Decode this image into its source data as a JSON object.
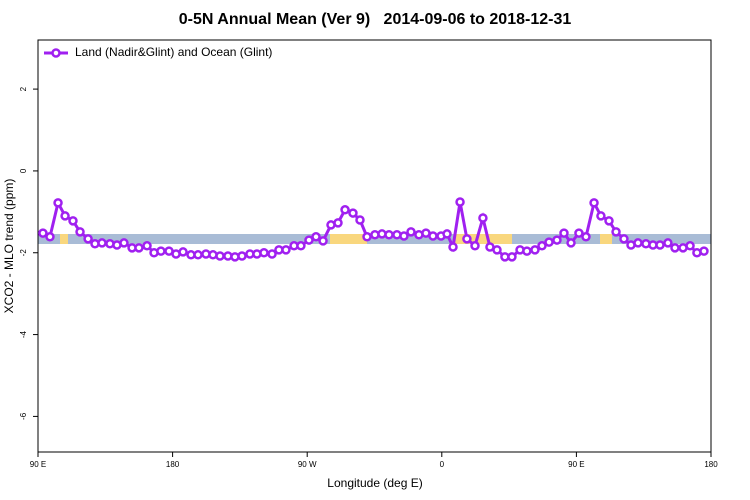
{
  "chart_data": {
    "type": "line",
    "title": "0-5N Annual Mean (Ver 9)   2014-09-06 to 2018-12-31",
    "xlabel": "Longitude (deg E)",
    "ylabel": "XCO2 - MLO trend (ppm)",
    "xlim": [
      90,
      540
    ],
    "ylim": [
      -6.87,
      3.2
    ],
    "xticks": [
      {
        "value": 90,
        "label": "90 E"
      },
      180,
      {
        "value": 270,
        "label": "90 W"
      },
      {
        "value": 360,
        "label": "0"
      },
      {
        "value": 450,
        "label": "90 E"
      },
      {
        "value": 540,
        "label": "180"
      }
    ],
    "yticks": [
      -6,
      -4,
      -2,
      0,
      2
    ],
    "legend": "top-left",
    "x": [
      93.3,
      98.0,
      103.4,
      108.1,
      113.4,
      118.1,
      123.5,
      128.1,
      132.8,
      138.1,
      142.8,
      147.5,
      152.9,
      157.5,
      162.9,
      167.6,
      172.2,
      177.6,
      182.3,
      187.0,
      192.3,
      197.0,
      202.3,
      207.0,
      211.7,
      217.0,
      221.7,
      226.4,
      231.7,
      236.4,
      241.1,
      246.5,
      251.1,
      255.8,
      261.2,
      265.8,
      271.2,
      275.9,
      280.6,
      285.9,
      290.6,
      295.3,
      300.6,
      305.3,
      310.0,
      315.3,
      320.0,
      324.7,
      330.0,
      334.7,
      339.4,
      344.7,
      349.4,
      354.1,
      359.5,
      363.5,
      367.5,
      372.2,
      376.8,
      382.2,
      387.5,
      392.2,
      396.9,
      402.2,
      406.9,
      412.3,
      416.9,
      422.3,
      427.0,
      431.7,
      437.0,
      441.7,
      446.4,
      451.7,
      456.4,
      461.8,
      466.4,
      471.8,
      476.5,
      481.8,
      486.5,
      491.2,
      496.5,
      501.2,
      505.9,
      511.2,
      515.9,
      521.3,
      526.0,
      530.6,
      535.3
    ],
    "series": [
      {
        "name": "Land (Nadir&Glint) and Ocean (Glint)",
        "color": "#a020f0",
        "values": [
          -1.52,
          -1.61,
          -0.78,
          -1.1,
          -1.22,
          -1.49,
          -1.66,
          -1.78,
          -1.76,
          -1.78,
          -1.81,
          -1.76,
          -1.88,
          -1.88,
          -1.83,
          -2.0,
          -1.96,
          -1.96,
          -2.03,
          -1.98,
          -2.05,
          -2.05,
          -2.03,
          -2.05,
          -2.08,
          -2.08,
          -2.1,
          -2.08,
          -2.03,
          -2.03,
          -2.0,
          -2.03,
          -1.93,
          -1.93,
          -1.83,
          -1.83,
          -1.69,
          -1.61,
          -1.71,
          -1.32,
          -1.27,
          -0.95,
          -1.03,
          -1.2,
          -1.61,
          -1.56,
          -1.54,
          -1.56,
          -1.56,
          -1.59,
          -1.49,
          -1.56,
          -1.52,
          -1.59,
          -1.59,
          -1.54,
          -1.86,
          -0.76,
          -1.66,
          -1.83,
          -1.15,
          -1.86,
          -1.93,
          -2.1,
          -2.1,
          -1.93,
          -1.96,
          -1.93,
          -1.83,
          -1.74,
          -1.69,
          -1.52,
          -1.76,
          -1.52,
          -1.61,
          -0.78,
          -1.1,
          -1.22,
          -1.49,
          -1.66,
          -1.81,
          -1.76,
          -1.78,
          -1.81,
          -1.81,
          -1.76,
          -1.88,
          -1.88,
          -1.83,
          -2.0,
          -1.96
        ]
      }
    ]
  }
}
